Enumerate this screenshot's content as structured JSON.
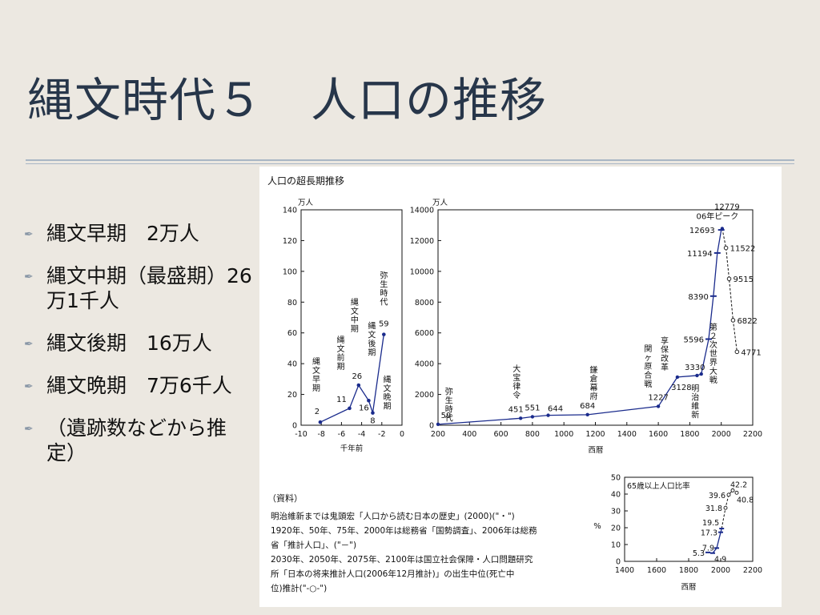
{
  "slide": {
    "title": "縄文時代５　人口の推移",
    "bullets": [
      {
        "text": "縄文早期　2万人"
      },
      {
        "text": "縄文中期（最盛期）26万1千人"
      },
      {
        "text": "縄文後期　16万人"
      },
      {
        "text": "縄文晩期　7万6千人"
      },
      {
        "text": "（遺跡数などから推定）"
      }
    ],
    "bullet_icon": "quill-icon"
  },
  "figure": {
    "title": "人口の超長期推移",
    "source_heading": "（資料）",
    "source_lines": [
      "明治維新までは鬼頭宏「人口から読む日本の歴史」(2000)(\"・\")",
      "1920年、50年、75年、2000年は総務省「国勢調査」、2006年は総務",
      "省「推計人口」、(\"－\")",
      "2030年、2050年、2075年、2100年は国立社会保障・人口問題研究",
      "所「日本の将来推計人口(2006年12月推計)」の出生中位(死亡中",
      "位)推計(\"-○-\")"
    ]
  },
  "chart_data": [
    {
      "type": "line",
      "unit_label": "万人",
      "xlabel": "千年前",
      "xlim": [
        -10,
        0
      ],
      "ylim": [
        0,
        140
      ],
      "x_ticks": [
        -10,
        -8,
        -6,
        -4,
        -2,
        0
      ],
      "y_ticks": [
        0,
        20,
        40,
        60,
        80,
        100,
        120,
        140
      ],
      "points": [
        {
          "x": -8.1,
          "y": 2,
          "label": "2",
          "era": "縄文早期"
        },
        {
          "x": -5.2,
          "y": 11,
          "label": "11",
          "era": "縄文前期"
        },
        {
          "x": -4.3,
          "y": 26,
          "label": "26",
          "era": "縄文中期"
        },
        {
          "x": -3.3,
          "y": 16,
          "label": "16",
          "era": "縄文後期"
        },
        {
          "x": -2.9,
          "y": 8,
          "label": "8",
          "era": "縄文晩期"
        },
        {
          "x": -1.8,
          "y": 59,
          "label": "59",
          "era": "弥生時代"
        }
      ]
    },
    {
      "type": "line",
      "unit_label": "万人",
      "xlabel": "西暦",
      "xlim": [
        200,
        2200
      ],
      "ylim": [
        0,
        14000
      ],
      "x_ticks": [
        200,
        400,
        600,
        800,
        1000,
        1200,
        1400,
        1600,
        1800,
        2000,
        2200
      ],
      "y_ticks": [
        0,
        2000,
        4000,
        6000,
        8000,
        10000,
        12000,
        14000
      ],
      "points": [
        {
          "x": 200,
          "y": 59,
          "label": "59"
        },
        {
          "x": 725,
          "y": 451,
          "label": "451"
        },
        {
          "x": 800,
          "y": 551,
          "label": "551"
        },
        {
          "x": 900,
          "y": 644,
          "label": "644"
        },
        {
          "x": 1150,
          "y": 684,
          "label": "684"
        },
        {
          "x": 1600,
          "y": 1227,
          "label": "1227"
        },
        {
          "x": 1721,
          "y": 3128,
          "label": "3128"
        },
        {
          "x": 1846,
          "y": 3230
        },
        {
          "x": 1873,
          "y": 3330,
          "label": "3330"
        },
        {
          "x": 1920,
          "y": 5596,
          "label": "5596"
        },
        {
          "x": 1950,
          "y": 8390,
          "label": "8390"
        },
        {
          "x": 1975,
          "y": 11194,
          "label": "11194"
        },
        {
          "x": 2000,
          "y": 12693,
          "label": "12693"
        },
        {
          "x": 2006,
          "y": 12779,
          "label": "12779"
        }
      ],
      "projection": [
        {
          "x": 2006,
          "y": 12779
        },
        {
          "x": 2030,
          "y": 11522,
          "label": "11522"
        },
        {
          "x": 2050,
          "y": 9515,
          "label": "9515"
        },
        {
          "x": 2075,
          "y": 6822,
          "label": "6822"
        },
        {
          "x": 2100,
          "y": 4771,
          "label": "4771"
        }
      ],
      "annotations": [
        {
          "text": "06年ピーク",
          "x": 2006,
          "y": 12779
        },
        {
          "text": "弥生時代",
          "x": 270,
          "y": 2000
        },
        {
          "text": "大宝律令",
          "x": 700,
          "y": 3500
        },
        {
          "text": "鎌倉幕府",
          "x": 1190,
          "y": 3400
        },
        {
          "text": "関ヶ原合戦",
          "x": 1535,
          "y": 4800
        },
        {
          "text": "享保改革",
          "x": 1640,
          "y": 5300
        },
        {
          "text": "明治維新",
          "x": 1835,
          "y": 2200
        },
        {
          "text": "第２次世界大戦",
          "x": 1950,
          "y": 6200
        }
      ]
    },
    {
      "type": "line",
      "title": "65歳以上人口比率",
      "ylabel": "%",
      "xlabel": "西暦",
      "xlim": [
        1400,
        2200
      ],
      "ylim": [
        0,
        50
      ],
      "x_ticks": [
        1400,
        1600,
        1800,
        2000,
        2200
      ],
      "y_ticks": [
        0,
        10,
        20,
        30,
        40,
        50
      ],
      "points": [
        {
          "x": 1920,
          "y": 5.3,
          "label": "5.3"
        },
        {
          "x": 1950,
          "y": 4.9,
          "label": "4.9"
        },
        {
          "x": 1975,
          "y": 7.9,
          "label": "7.9"
        },
        {
          "x": 2000,
          "y": 17.3,
          "label": "17.3"
        },
        {
          "x": 2006,
          "y": 19.5,
          "label": "19.5"
        }
      ],
      "projection": [
        {
          "x": 2006,
          "y": 19.5
        },
        {
          "x": 2030,
          "y": 31.8,
          "label": "31.8"
        },
        {
          "x": 2050,
          "y": 39.6,
          "label": "39.6"
        },
        {
          "x": 2075,
          "y": 42.2,
          "label": "42.2"
        },
        {
          "x": 2100,
          "y": 40.8,
          "label": "40.8"
        }
      ]
    }
  ]
}
